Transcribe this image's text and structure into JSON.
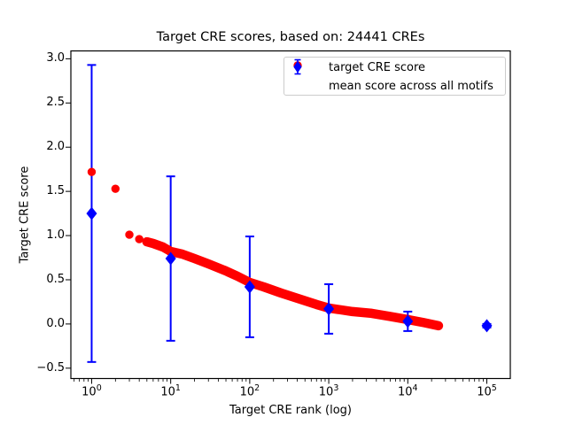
{
  "chart_data": {
    "type": "scatter",
    "title": "Target CRE scores, based on: 24441 CREs",
    "xlabel": "Target CRE rank (log)",
    "ylabel": "Target CRE score",
    "background_color": "#ffffff",
    "frame_color": "#000000",
    "legend": {
      "position": "upper right",
      "border_color": "#cccccc"
    },
    "axes": {
      "x_scale": "log",
      "xlim_log": [
        -0.263,
        5.297
      ],
      "ylim": [
        -0.617,
        3.089
      ],
      "grid": false,
      "x_ticks": [
        {
          "value": 1,
          "label_base": "10",
          "label_exp": "0"
        },
        {
          "value": 10,
          "label_base": "10",
          "label_exp": "1"
        },
        {
          "value": 100,
          "label_base": "10",
          "label_exp": "2"
        },
        {
          "value": 1000,
          "label_base": "10",
          "label_exp": "3"
        },
        {
          "value": 10000,
          "label_base": "10",
          "label_exp": "4"
        },
        {
          "value": 100000,
          "label_base": "10",
          "label_exp": "5"
        }
      ],
      "y_ticks": [
        {
          "value": 3.0,
          "label": "3.0"
        },
        {
          "value": 2.5,
          "label": "2.5"
        },
        {
          "value": 2.0,
          "label": "2.0"
        },
        {
          "value": 1.5,
          "label": "1.5"
        },
        {
          "value": 1.0,
          "label": "1.0"
        },
        {
          "value": 0.5,
          "label": "0.5"
        },
        {
          "value": 0.0,
          "label": "0.0"
        },
        {
          "value": -0.5,
          "label": "−0.5"
        }
      ]
    },
    "series": [
      {
        "name": "target CRE score",
        "color": "#ff0000",
        "marker": "circle",
        "note": "24441 ranked CREs; markers merge into a thick band for rank >= 5",
        "band_from_rank": 5,
        "points": [
          [
            1,
            1.72
          ],
          [
            2,
            1.53
          ],
          [
            3,
            1.01
          ],
          [
            4,
            0.96
          ],
          [
            5,
            0.93
          ],
          [
            6,
            0.91
          ],
          [
            8,
            0.87
          ],
          [
            10,
            0.82
          ],
          [
            14,
            0.79
          ],
          [
            20,
            0.74
          ],
          [
            30,
            0.68
          ],
          [
            50,
            0.6
          ],
          [
            70,
            0.54
          ],
          [
            100,
            0.47
          ],
          [
            150,
            0.42
          ],
          [
            250,
            0.35
          ],
          [
            400,
            0.29
          ],
          [
            700,
            0.22
          ],
          [
            1000,
            0.18
          ],
          [
            2000,
            0.14
          ],
          [
            3500,
            0.12
          ],
          [
            6000,
            0.085
          ],
          [
            10000,
            0.05
          ],
          [
            16000,
            0.015
          ],
          [
            24441,
            -0.02
          ]
        ]
      },
      {
        "name": "mean score across all motifs",
        "color": "#0000ff",
        "marker": "diamond",
        "points": [
          [
            1,
            1.25
          ],
          [
            10,
            0.74
          ],
          [
            100,
            0.42
          ],
          [
            1000,
            0.17
          ],
          [
            10000,
            0.03
          ],
          [
            100000,
            -0.02
          ]
        ],
        "errors": [
          1.68,
          0.93,
          0.57,
          0.28,
          0.11,
          0.02
        ]
      }
    ]
  }
}
